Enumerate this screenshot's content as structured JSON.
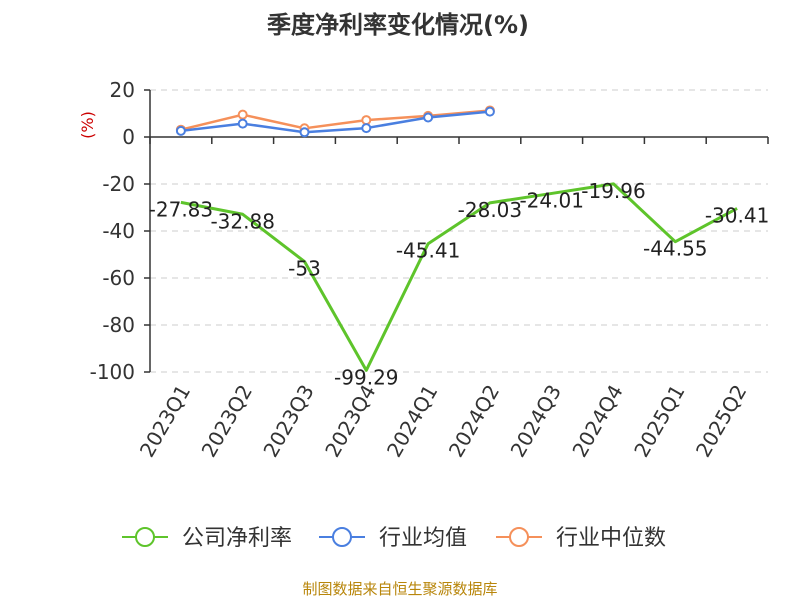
{
  "source_text": "制图数据来自恒生聚源数据库",
  "chart_data": {
    "type": "line",
    "title": "季度净利率变化情况(%)",
    "ylabel": "(%)",
    "xlabel": "",
    "ylim": [
      -100,
      20
    ],
    "yticks": [
      20,
      0,
      -20,
      -40,
      -60,
      -80,
      -100
    ],
    "categories": [
      "2023Q1",
      "2023Q2",
      "2023Q3",
      "2023Q4",
      "2024Q1",
      "2024Q2",
      "2024Q3",
      "2024Q4",
      "2025Q1",
      "2025Q2"
    ],
    "grid": true,
    "legend_position": "bottom",
    "series": [
      {
        "name": "公司净利率",
        "color": "#5ec42b",
        "values": [
          -27.83,
          -32.88,
          -53,
          -99.29,
          -45.41,
          -28.03,
          -24.01,
          -19.96,
          -44.55,
          -30.41
        ],
        "labels": [
          "-27.83",
          "-32.88",
          "-53",
          "-99.29",
          "-45.41",
          "-28.03",
          "-24.01",
          "-19.96",
          "-44.55",
          "-30.41"
        ],
        "markers": false
      },
      {
        "name": "行业均值",
        "color": "#4a7fe0",
        "values": [
          2.6,
          5.7,
          2.0,
          3.8,
          8.3,
          10.8,
          null,
          null,
          null,
          null
        ],
        "markers": true
      },
      {
        "name": "行业中位数",
        "color": "#f5905a",
        "values": [
          3.1,
          9.5,
          3.7,
          7.2,
          9.0,
          11.3,
          null,
          null,
          null,
          null
        ],
        "markers": true
      }
    ]
  }
}
